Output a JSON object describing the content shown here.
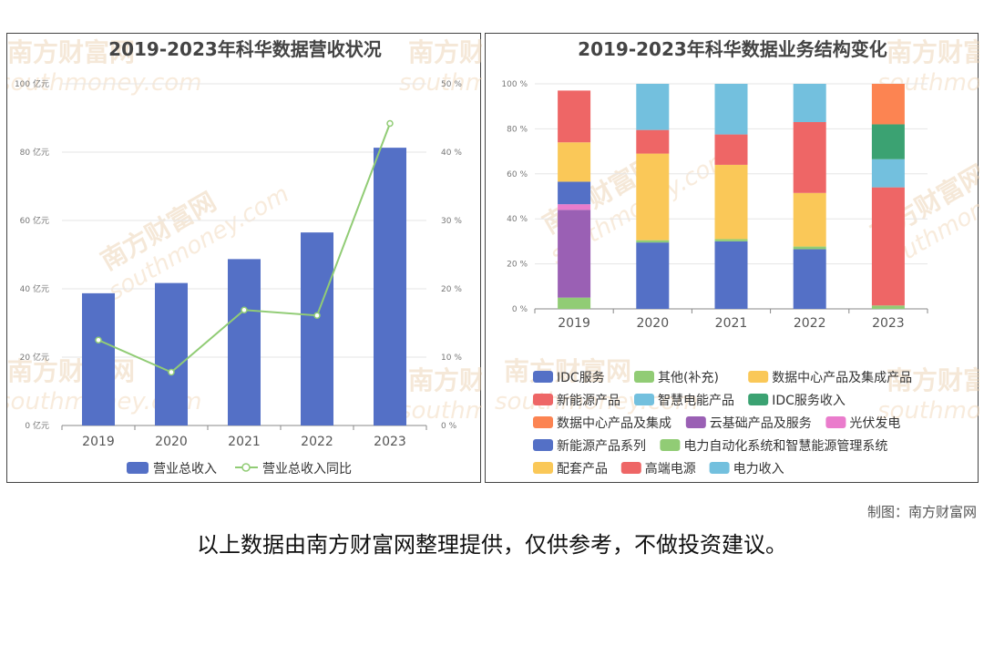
{
  "watermark": {
    "cn": "南方财富网",
    "en": "southmoney.com"
  },
  "credit": "制图：南方财富网",
  "disclaimer": "以上数据由南方财富网整理提供，仅供参考，不做投资建议。",
  "chart_data": [
    {
      "type": "bar",
      "title": "2019-2023年科华数据营收状况",
      "categories": [
        "2019",
        "2020",
        "2021",
        "2022",
        "2023"
      ],
      "y_left": {
        "ylim": [
          0,
          100
        ],
        "ticks": [
          "0 亿元",
          "20 亿元",
          "40 亿元",
          "60 亿元",
          "80 亿元",
          "100 亿元"
        ]
      },
      "y_right": {
        "ylim": [
          0,
          50
        ],
        "ticks": [
          "0 %",
          "10 %",
          "20 %",
          "30 %",
          "40 %",
          "50 %"
        ]
      },
      "series": [
        {
          "name": "营业总收入",
          "kind": "bar",
          "axis": "left",
          "color": "#5470c6",
          "values": [
            38.7,
            41.7,
            48.7,
            56.5,
            81.3
          ]
        },
        {
          "name": "营业总收入同比",
          "kind": "line",
          "axis": "right",
          "color": "#91cc75",
          "values": [
            12.5,
            7.8,
            16.9,
            16.1,
            44.2
          ]
        }
      ],
      "grid": true,
      "legend": "bottom"
    },
    {
      "type": "bar",
      "stacked": true,
      "title": "2019-2023年科华数据业务结构变化",
      "categories": [
        "2019",
        "2020",
        "2021",
        "2022",
        "2023"
      ],
      "ylim": [
        0,
        100
      ],
      "ticks": [
        "0 %",
        "20 %",
        "40 %",
        "60 %",
        "80 %",
        "100 %"
      ],
      "series": [
        {
          "name": "IDC服务",
          "color": "#5470c6",
          "values": [
            0,
            29.5,
            30.0,
            26.5,
            0
          ]
        },
        {
          "name": "其他(补充)",
          "color": "#91cc75",
          "values": [
            0,
            1.0,
            1.0,
            1.2,
            0
          ]
        },
        {
          "name": "数据中心产品及集成产品",
          "color": "#fac858",
          "values": [
            0,
            38.5,
            33.0,
            23.8,
            0
          ]
        },
        {
          "name": "新能源产品",
          "color": "#ee6666",
          "values": [
            0,
            10.5,
            13.5,
            31.5,
            0
          ]
        },
        {
          "name": "智慧电能产品",
          "color": "#73c0de",
          "values": [
            0,
            20.5,
            22.5,
            17.0,
            0
          ]
        },
        {
          "name": "IDC服务收入",
          "color": "#3ba272",
          "values": [
            0,
            0,
            0,
            0,
            0
          ]
        },
        {
          "name": "数据中心产品及集成",
          "color": "#fc8452",
          "values": [
            0,
            0,
            0,
            0,
            0
          ]
        },
        {
          "name": "云基础产品及服务",
          "color": "#9a60b4",
          "values": [
            39.0,
            0,
            0,
            0,
            0
          ]
        },
        {
          "name": "光伏发电",
          "color": "#ea7ccc",
          "values": [
            2.5,
            0,
            0,
            0,
            0
          ]
        },
        {
          "name": "新能源产品系列",
          "color": "#5470c6",
          "values": [
            10.0,
            0,
            0,
            0,
            0
          ]
        },
        {
          "name": "电力自动化系统和智慧能源管理系统",
          "color": "#91cc75",
          "values": [
            5.0,
            0,
            0,
            0,
            1.5
          ]
        },
        {
          "name": "配套产品",
          "color": "#fac858",
          "values": [
            17.5,
            0,
            0,
            0,
            0
          ]
        },
        {
          "name": "高端电源",
          "color": "#ee6666",
          "values": [
            23.0,
            0,
            0,
            0,
            52.5
          ]
        },
        {
          "name": "电力收入",
          "color": "#73c0de",
          "values": [
            0,
            0,
            0,
            0,
            12.5
          ]
        },
        {
          "name": "IDC服务收入",
          "color": "#3ba272",
          "values": [
            0,
            0,
            0,
            0,
            15.5
          ]
        },
        {
          "name": "数据中心产品及集成",
          "color": "#fc8452",
          "values": [
            0,
            0,
            0,
            0,
            18.0
          ]
        }
      ],
      "order_note": "",
      "grid": true,
      "legend": "bottom"
    }
  ]
}
